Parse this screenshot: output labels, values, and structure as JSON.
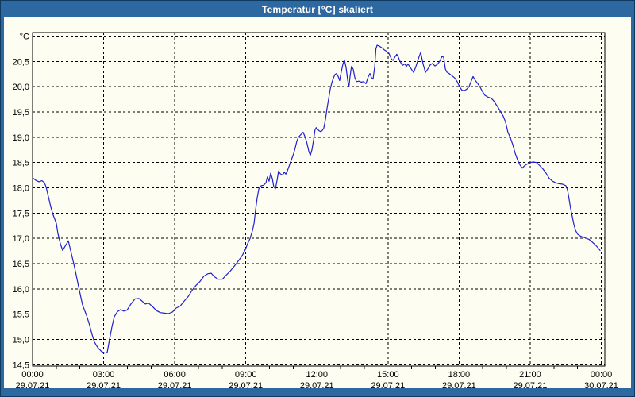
{
  "window": {
    "title": "Temperatur [°C] skaliert",
    "colors": {
      "titlebar_bg": "#2d69a0",
      "window_outline": "#0d3a5e",
      "content_bg": "#fdfdf2",
      "grid": "#000000",
      "frame": "#000000",
      "label_text": "#000000",
      "title_text": "#ffffff"
    }
  },
  "chart_data": {
    "type": "line",
    "title": "Temperatur [°C] skaliert",
    "unit_label": "°C",
    "grid": "dashed",
    "legend": "none",
    "x_axis": {
      "unit": "hours",
      "range": [
        0,
        24
      ],
      "major_step_hours": 3,
      "minor_tick_hours": 1
    },
    "y_axis": {
      "unit": "°C",
      "range": [
        14.45,
        21.05
      ],
      "gridline_step": 0.5
    },
    "y_ticks": [
      {
        "value": 21.0,
        "label": "°C"
      },
      {
        "value": 20.5,
        "label": "20,5"
      },
      {
        "value": 20.0,
        "label": "20,0"
      },
      {
        "value": 19.5,
        "label": "19,5"
      },
      {
        "value": 19.0,
        "label": "19,0"
      },
      {
        "value": 18.5,
        "label": "18,5"
      },
      {
        "value": 18.0,
        "label": "18,0"
      },
      {
        "value": 17.5,
        "label": "17,5"
      },
      {
        "value": 17.0,
        "label": "17,0"
      },
      {
        "value": 16.5,
        "label": "16,5"
      },
      {
        "value": 16.0,
        "label": "16,0"
      },
      {
        "value": 15.5,
        "label": "15,5"
      },
      {
        "value": 15.0,
        "label": "15,0"
      },
      {
        "value": 14.5,
        "label": "14,5"
      }
    ],
    "x_ticks": [
      {
        "hour": 0,
        "time": "00:00",
        "date": "29.07.21"
      },
      {
        "hour": 3,
        "time": "03:00",
        "date": "29.07.21"
      },
      {
        "hour": 6,
        "time": "06:00",
        "date": "29.07.21"
      },
      {
        "hour": 9,
        "time": "09:00",
        "date": "29.07.21"
      },
      {
        "hour": 12,
        "time": "12:00",
        "date": "29.07.21"
      },
      {
        "hour": 15,
        "time": "15:00",
        "date": "29.07.21"
      },
      {
        "hour": 18,
        "time": "18:00",
        "date": "29.07.21"
      },
      {
        "hour": 21,
        "time": "21:00",
        "date": "29.07.21"
      },
      {
        "hour": 24,
        "time": "00:00",
        "date": "30.07.21"
      }
    ],
    "series": [
      {
        "name": "Temperatur",
        "color": "#2020cc",
        "points": [
          [
            0.0,
            18.2
          ],
          [
            0.13,
            18.15
          ],
          [
            0.27,
            18.12
          ],
          [
            0.4,
            18.14
          ],
          [
            0.5,
            18.1
          ],
          [
            0.57,
            18.02
          ],
          [
            0.67,
            17.82
          ],
          [
            0.77,
            17.62
          ],
          [
            0.87,
            17.46
          ],
          [
            1.0,
            17.3
          ],
          [
            1.07,
            17.1
          ],
          [
            1.17,
            16.9
          ],
          [
            1.27,
            16.76
          ],
          [
            1.37,
            16.84
          ],
          [
            1.51,
            16.95
          ],
          [
            1.61,
            16.75
          ],
          [
            1.74,
            16.5
          ],
          [
            1.84,
            16.28
          ],
          [
            1.94,
            16.05
          ],
          [
            2.11,
            15.68
          ],
          [
            2.28,
            15.47
          ],
          [
            2.41,
            15.28
          ],
          [
            2.51,
            15.1
          ],
          [
            2.61,
            14.95
          ],
          [
            2.75,
            14.84
          ],
          [
            2.91,
            14.76
          ],
          [
            3.05,
            14.73
          ],
          [
            3.15,
            14.74
          ],
          [
            3.25,
            15.0
          ],
          [
            3.35,
            15.25
          ],
          [
            3.45,
            15.45
          ],
          [
            3.58,
            15.55
          ],
          [
            3.72,
            15.59
          ],
          [
            3.85,
            15.56
          ],
          [
            3.99,
            15.58
          ],
          [
            4.15,
            15.7
          ],
          [
            4.32,
            15.8
          ],
          [
            4.49,
            15.81
          ],
          [
            4.62,
            15.76
          ],
          [
            4.76,
            15.7
          ],
          [
            4.89,
            15.72
          ],
          [
            5.06,
            15.65
          ],
          [
            5.23,
            15.57
          ],
          [
            5.39,
            15.53
          ],
          [
            5.56,
            15.52
          ],
          [
            5.73,
            15.51
          ],
          [
            5.9,
            15.54
          ],
          [
            6.06,
            15.62
          ],
          [
            6.23,
            15.66
          ],
          [
            6.4,
            15.76
          ],
          [
            6.57,
            15.85
          ],
          [
            6.73,
            15.97
          ],
          [
            6.9,
            16.07
          ],
          [
            7.07,
            16.15
          ],
          [
            7.23,
            16.25
          ],
          [
            7.4,
            16.3
          ],
          [
            7.54,
            16.31
          ],
          [
            7.67,
            16.24
          ],
          [
            7.84,
            16.19
          ],
          [
            8.01,
            16.19
          ],
          [
            8.17,
            16.27
          ],
          [
            8.34,
            16.35
          ],
          [
            8.51,
            16.45
          ],
          [
            8.68,
            16.55
          ],
          [
            8.84,
            16.65
          ],
          [
            8.98,
            16.78
          ],
          [
            9.08,
            16.9
          ],
          [
            9.18,
            17.0
          ],
          [
            9.28,
            17.15
          ],
          [
            9.35,
            17.3
          ],
          [
            9.41,
            17.55
          ],
          [
            9.48,
            17.8
          ],
          [
            9.55,
            17.98
          ],
          [
            9.65,
            18.04
          ],
          [
            9.75,
            18.05
          ],
          [
            9.85,
            18.1
          ],
          [
            9.91,
            18.22
          ],
          [
            9.98,
            18.13
          ],
          [
            10.05,
            18.29
          ],
          [
            10.12,
            18.18
          ],
          [
            10.18,
            18.02
          ],
          [
            10.25,
            17.98
          ],
          [
            10.32,
            18.15
          ],
          [
            10.38,
            18.33
          ],
          [
            10.45,
            18.28
          ],
          [
            10.55,
            18.25
          ],
          [
            10.62,
            18.31
          ],
          [
            10.69,
            18.27
          ],
          [
            10.75,
            18.33
          ],
          [
            10.82,
            18.42
          ],
          [
            10.92,
            18.55
          ],
          [
            11.02,
            18.68
          ],
          [
            11.09,
            18.8
          ],
          [
            11.15,
            18.92
          ],
          [
            11.22,
            19.0
          ],
          [
            11.32,
            19.05
          ],
          [
            11.42,
            19.1
          ],
          [
            11.49,
            19.02
          ],
          [
            11.56,
            18.92
          ],
          [
            11.66,
            18.72
          ],
          [
            11.72,
            18.64
          ],
          [
            11.79,
            18.75
          ],
          [
            11.86,
            18.95
          ],
          [
            11.92,
            19.15
          ],
          [
            11.97,
            19.19
          ],
          [
            12.02,
            19.16
          ],
          [
            12.09,
            19.13
          ],
          [
            12.16,
            19.11
          ],
          [
            12.22,
            19.13
          ],
          [
            12.29,
            19.18
          ],
          [
            12.36,
            19.35
          ],
          [
            12.42,
            19.55
          ],
          [
            12.49,
            19.75
          ],
          [
            12.56,
            19.95
          ],
          [
            12.63,
            20.08
          ],
          [
            12.69,
            20.16
          ],
          [
            12.76,
            20.24
          ],
          [
            12.83,
            20.26
          ],
          [
            12.9,
            20.2
          ],
          [
            12.96,
            20.12
          ],
          [
            13.03,
            20.3
          ],
          [
            13.1,
            20.45
          ],
          [
            13.16,
            20.53
          ],
          [
            13.23,
            20.38
          ],
          [
            13.3,
            20.12
          ],
          [
            13.35,
            20.0
          ],
          [
            13.4,
            20.2
          ],
          [
            13.46,
            20.4
          ],
          [
            13.53,
            20.35
          ],
          [
            13.6,
            20.18
          ],
          [
            13.67,
            20.1
          ],
          [
            13.77,
            20.11
          ],
          [
            13.87,
            20.09
          ],
          [
            13.97,
            20.1
          ],
          [
            14.07,
            20.06
          ],
          [
            14.17,
            20.2
          ],
          [
            14.24,
            20.26
          ],
          [
            14.3,
            20.18
          ],
          [
            14.37,
            20.15
          ],
          [
            14.44,
            20.4
          ],
          [
            14.49,
            20.75
          ],
          [
            14.54,
            20.82
          ],
          [
            14.64,
            20.8
          ],
          [
            14.74,
            20.77
          ],
          [
            14.84,
            20.73
          ],
          [
            14.94,
            20.7
          ],
          [
            15.04,
            20.66
          ],
          [
            15.14,
            20.55
          ],
          [
            15.21,
            20.52
          ],
          [
            15.31,
            20.6
          ],
          [
            15.37,
            20.64
          ],
          [
            15.44,
            20.58
          ],
          [
            15.51,
            20.5
          ],
          [
            15.61,
            20.42
          ],
          [
            15.71,
            20.45
          ],
          [
            15.78,
            20.4
          ],
          [
            15.84,
            20.45
          ],
          [
            15.91,
            20.4
          ],
          [
            15.98,
            20.35
          ],
          [
            16.08,
            20.28
          ],
          [
            16.18,
            20.4
          ],
          [
            16.28,
            20.55
          ],
          [
            16.38,
            20.68
          ],
          [
            16.48,
            20.45
          ],
          [
            16.58,
            20.28
          ],
          [
            16.68,
            20.35
          ],
          [
            16.78,
            20.43
          ],
          [
            16.88,
            20.46
          ],
          [
            16.98,
            20.41
          ],
          [
            17.08,
            20.44
          ],
          [
            17.18,
            20.5
          ],
          [
            17.28,
            20.6
          ],
          [
            17.35,
            20.58
          ],
          [
            17.42,
            20.35
          ],
          [
            17.48,
            20.29
          ],
          [
            17.58,
            20.26
          ],
          [
            17.72,
            20.21
          ],
          [
            17.82,
            20.17
          ],
          [
            17.92,
            20.1
          ],
          [
            18.02,
            20.0
          ],
          [
            18.12,
            19.93
          ],
          [
            18.22,
            19.92
          ],
          [
            18.32,
            19.95
          ],
          [
            18.42,
            20.0
          ],
          [
            18.52,
            20.12
          ],
          [
            18.59,
            20.2
          ],
          [
            18.69,
            20.12
          ],
          [
            18.79,
            20.06
          ],
          [
            18.89,
            19.99
          ],
          [
            18.99,
            19.9
          ],
          [
            19.09,
            19.83
          ],
          [
            19.23,
            19.79
          ],
          [
            19.36,
            19.77
          ],
          [
            19.46,
            19.72
          ],
          [
            19.56,
            19.65
          ],
          [
            19.66,
            19.58
          ],
          [
            19.76,
            19.5
          ],
          [
            19.86,
            19.42
          ],
          [
            19.96,
            19.3
          ],
          [
            20.06,
            19.1
          ],
          [
            20.17,
            18.98
          ],
          [
            20.27,
            18.85
          ],
          [
            20.37,
            18.68
          ],
          [
            20.47,
            18.55
          ],
          [
            20.57,
            18.45
          ],
          [
            20.67,
            18.39
          ],
          [
            20.77,
            18.44
          ],
          [
            20.87,
            18.47
          ],
          [
            21.0,
            18.5
          ],
          [
            21.14,
            18.51
          ],
          [
            21.27,
            18.5
          ],
          [
            21.4,
            18.44
          ],
          [
            21.54,
            18.37
          ],
          [
            21.67,
            18.29
          ],
          [
            21.8,
            18.19
          ],
          [
            21.94,
            18.13
          ],
          [
            22.07,
            18.1
          ],
          [
            22.21,
            18.08
          ],
          [
            22.37,
            18.07
          ],
          [
            22.51,
            18.04
          ],
          [
            22.58,
            17.95
          ],
          [
            22.64,
            17.78
          ],
          [
            22.71,
            17.58
          ],
          [
            22.78,
            17.42
          ],
          [
            22.84,
            17.28
          ],
          [
            22.91,
            17.16
          ],
          [
            23.01,
            17.08
          ],
          [
            23.14,
            17.04
          ],
          [
            23.31,
            17.01
          ],
          [
            23.48,
            16.98
          ],
          [
            23.61,
            16.93
          ],
          [
            23.75,
            16.87
          ],
          [
            23.85,
            16.82
          ],
          [
            23.95,
            16.76
          ]
        ]
      }
    ]
  }
}
